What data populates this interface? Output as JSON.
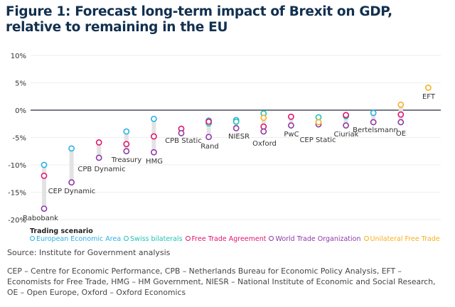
{
  "chart_data": {
    "type": "scatter",
    "title": "Figure 1: Forecast long-term impact of Brexit on GDP, relative to remaining in the EU",
    "ylim": [
      -20,
      10
    ],
    "yticks": [
      "10%",
      "5%",
      "0%",
      "-5%",
      "-10%",
      "-15%",
      "-20%"
    ],
    "ytick_values": [
      10,
      5,
      0,
      -5,
      -10,
      -15,
      -20
    ],
    "grid": true,
    "legend_title": "Trading scenario",
    "legend_placement": "bottom-left",
    "series": [
      {
        "key": "eea",
        "name": "European Economic Area",
        "color": "#2ab0e6"
      },
      {
        "key": "swiss",
        "name": "Swiss bilaterals",
        "color": "#1fc4b4"
      },
      {
        "key": "fta",
        "name": "Free Trade Agreement",
        "color": "#e2146f"
      },
      {
        "key": "wto",
        "name": "World Trade Organization",
        "color": "#8c3aa6"
      },
      {
        "key": "uft",
        "name": "Unilateral Free Trade",
        "color": "#f6b01e"
      }
    ],
    "studies": [
      {
        "name": "Rabobank",
        "eea": -10.0,
        "fta": -12.0,
        "wto": -18.0
      },
      {
        "name": "CEP Dynamic",
        "eea": -7.0,
        "wto": -13.2
      },
      {
        "name": "CPB Dynamic",
        "fta": -5.9,
        "wto": -8.7
      },
      {
        "name": "Treasury",
        "eea": -3.9,
        "fta": -6.2,
        "wto": -7.5
      },
      {
        "name": "HMG",
        "eea": -1.6,
        "fta": -4.8,
        "wto": -7.7
      },
      {
        "name": "CPB Static",
        "fta": -3.4,
        "wto": -4.2
      },
      {
        "name": "Rand",
        "eea": -1.9,
        "swiss": -2.4,
        "fta": -2.1,
        "wto": -4.9
      },
      {
        "name": "NIESR",
        "eea": -1.8,
        "swiss": -2.1,
        "wto": -3.3
      },
      {
        "name": "Oxford",
        "swiss": -0.6,
        "uft": -1.4,
        "fta": -3.0,
        "wto": -3.9
      },
      {
        "name": "PwC",
        "fta": -1.2,
        "wto": -2.8
      },
      {
        "name": "CEP Static",
        "swiss": -1.3,
        "uft": -2.2,
        "wto": -2.6
      },
      {
        "name": "Ciuriak",
        "swiss": -1.1,
        "fta": -0.9,
        "wto": -2.8
      },
      {
        "name": "Bertelsmann",
        "eea": -0.5,
        "wto": -2.2
      },
      {
        "name": "OE",
        "uft": 1.0,
        "fta": -0.8,
        "wto": -2.2
      },
      {
        "name": "EFT",
        "uft": 4.1
      }
    ]
  },
  "source": "Source: Institute for Government analysis",
  "notes": "CEP – Centre for Economic Performance, CPB – Netherlands Bureau for Economic Policy Analysis, EFT – Economists for Free Trade, HMG – HM Government, NIESR – National Institute of Economic and Social Research, OE – Open Europe, Oxford – Oxford Economics"
}
